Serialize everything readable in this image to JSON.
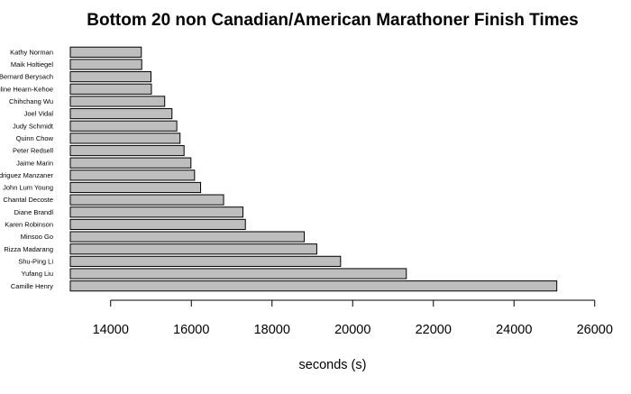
{
  "chart_data": {
    "type": "bar",
    "orientation": "horizontal",
    "title": "Bottom 20 non Canadian/American Marathoner Finish Times",
    "xlabel": "seconds (s)",
    "ylabel": "",
    "xlim": [
      13000,
      26000
    ],
    "xticks": [
      14000,
      16000,
      18000,
      20000,
      22000,
      24000,
      26000
    ],
    "bar_color": "#bebebe",
    "bar_edge_color": "#000000",
    "categories": [
      "Camille Henry",
      "Yufang Liu",
      "Shu-Ping Li",
      "Rizza Madarang",
      "Minsoo Go",
      "Karen Robinson",
      "Diane Brandl",
      "Chantal Decoste",
      "John Lum Young",
      "Rodriguez Manzaner",
      "Jaime Marin",
      "Peter Redsell",
      "Quinn Chow",
      "Judy Schmidt",
      "Joel Vidal",
      "Chihchang Wu",
      "Pauline Hearn-Kehoe",
      "Bernard Berysach",
      "Maik Holtiegel",
      "Kathy Norman"
    ],
    "values": [
      25060,
      21330,
      19700,
      19110,
      18800,
      17340,
      17280,
      16800,
      16230,
      16080,
      15990,
      15820,
      15720,
      15640,
      15520,
      15340,
      15010,
      15000,
      14770,
      14760
    ]
  }
}
